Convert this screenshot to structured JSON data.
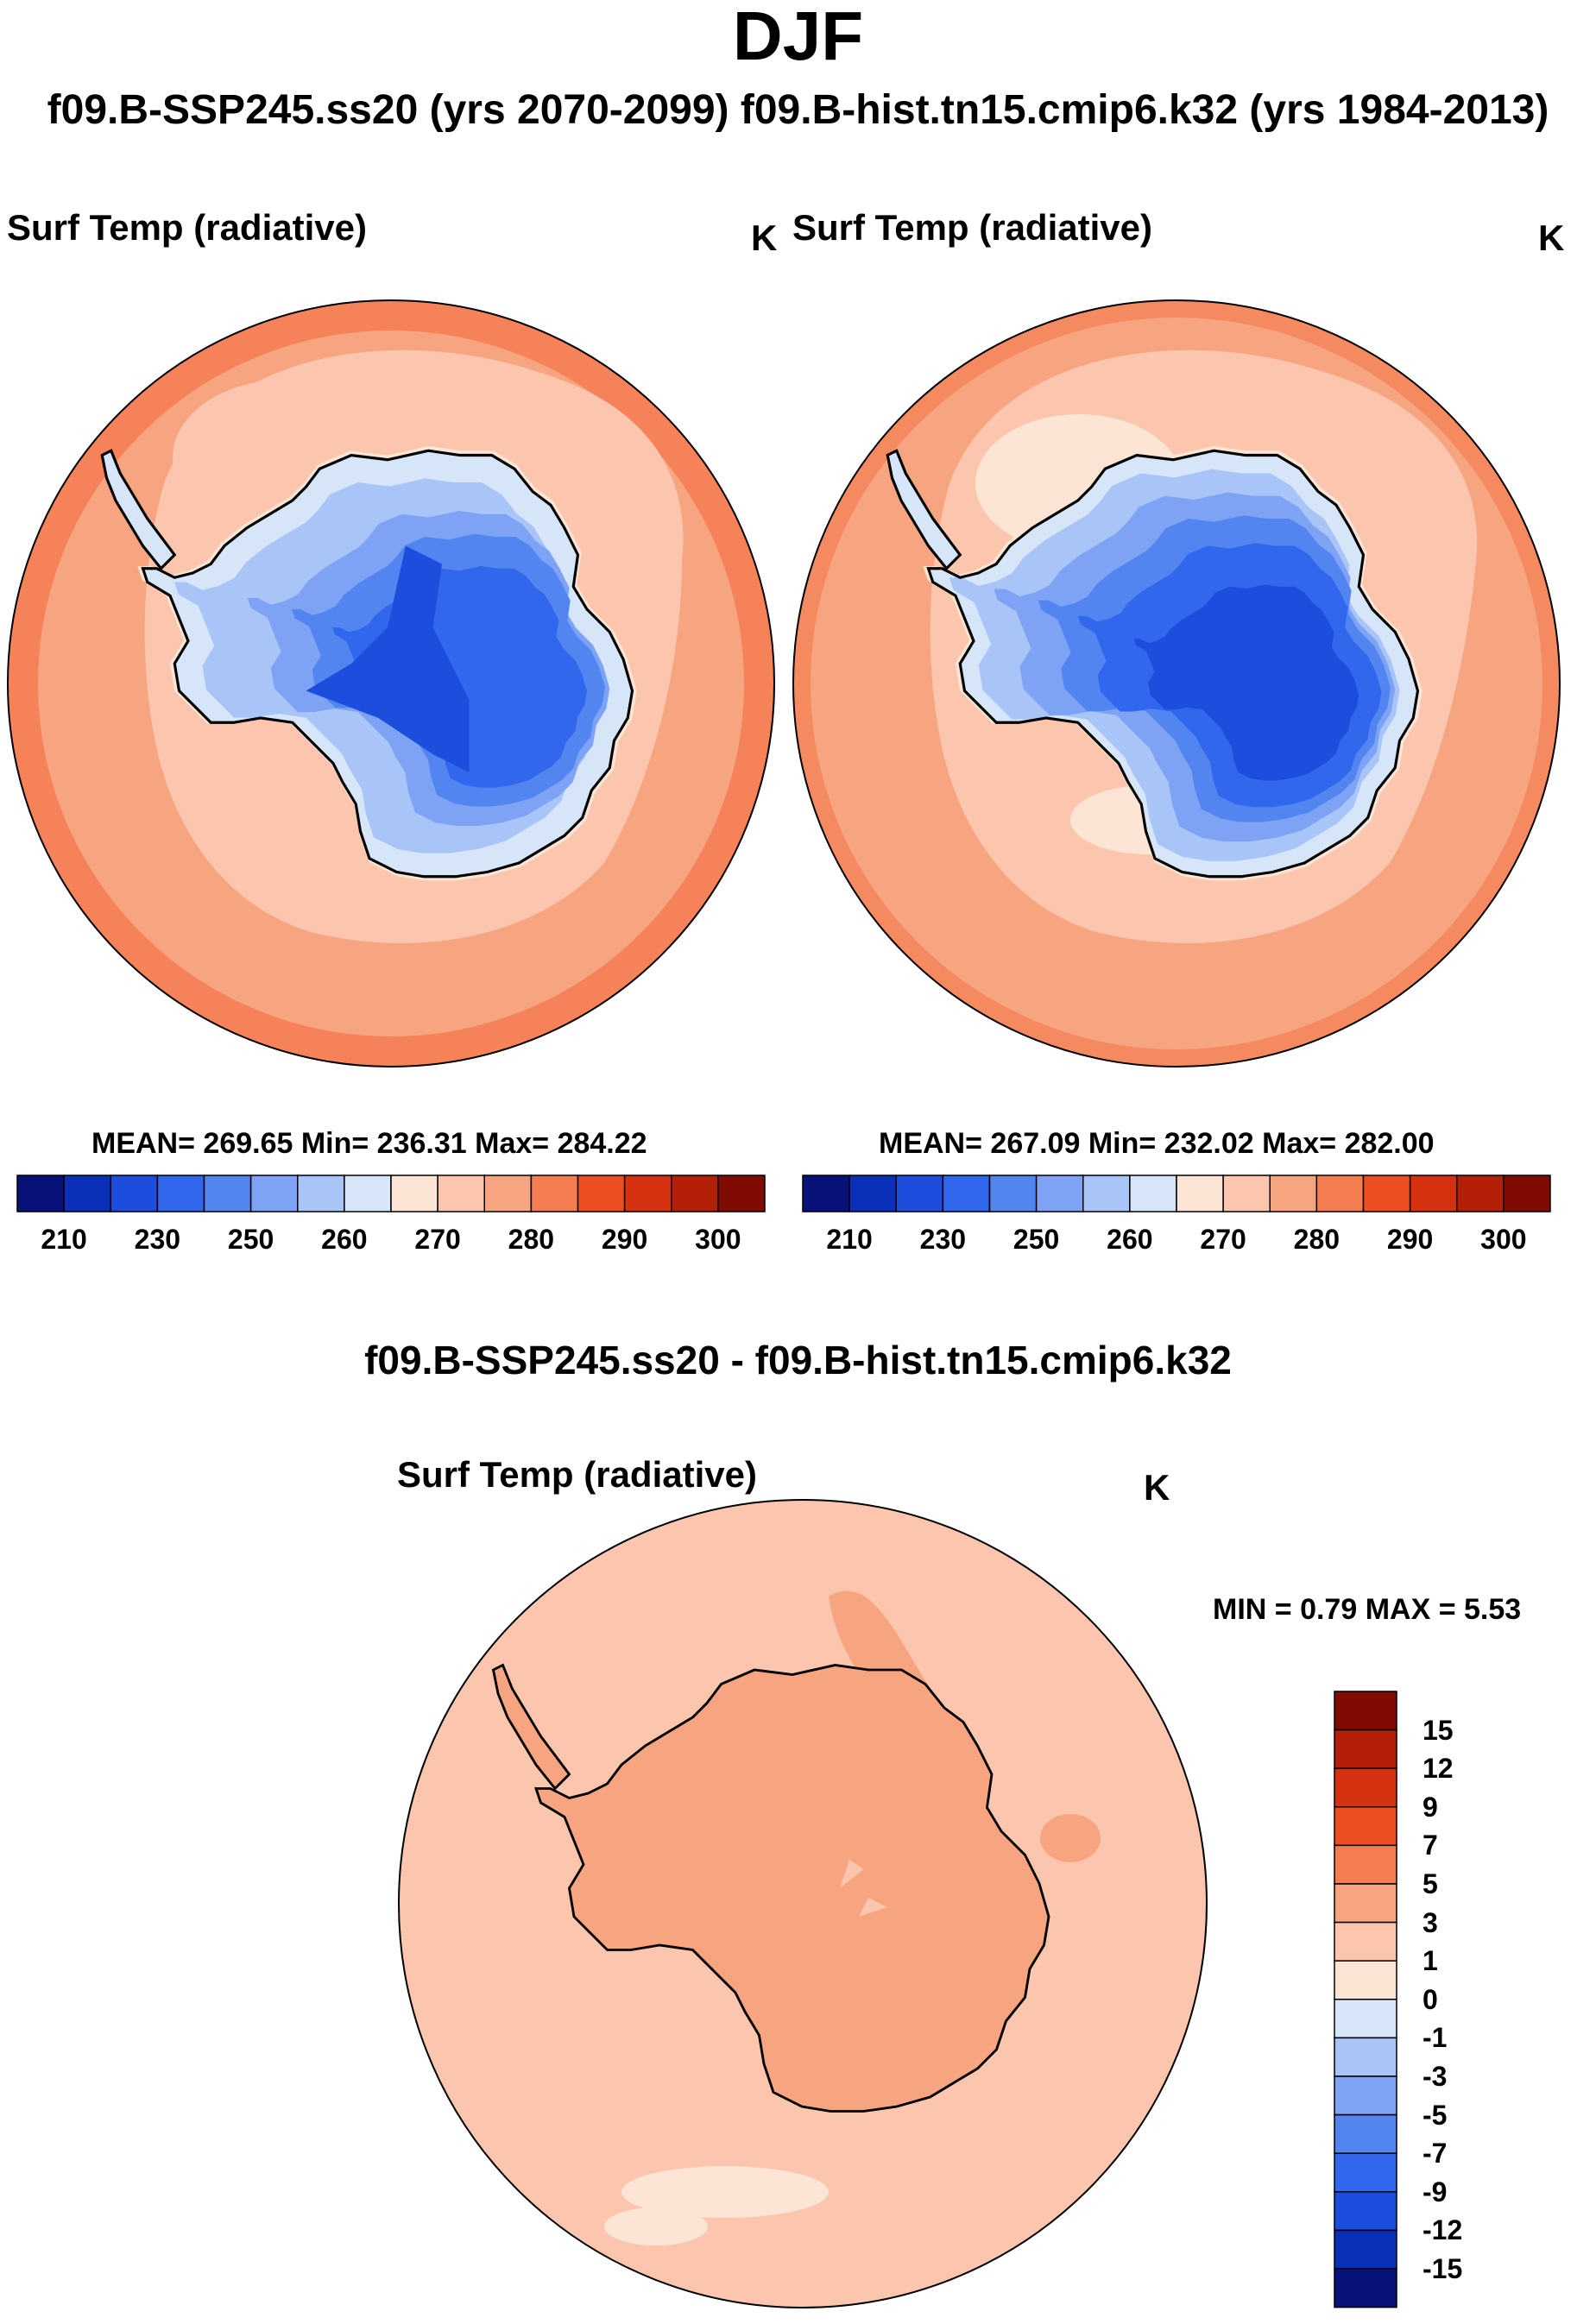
{
  "header": {
    "title": "DJF",
    "subtitle": "f09.B-SSP245.ss20 (yrs 2070-2099)  f09.B-hist.tn15.cmip6.k32 (yrs 1984-2013)"
  },
  "panels": {
    "left": {
      "title": "Surf Temp (radiative)",
      "units": "K",
      "stats": "MEAN= 269.65  Min= 236.31  Max= 284.22"
    },
    "right": {
      "title": "Surf Temp (radiative)",
      "units": "K",
      "stats": "MEAN= 267.09  Min= 232.02  Max= 282.00"
    },
    "diff": {
      "heading": "f09.B-SSP245.ss20 - f09.B-hist.tn15.cmip6.k32",
      "title": "Surf Temp (radiative)",
      "units": "K",
      "stats": "MIN =   0.79 MAX =   5.53"
    }
  },
  "colorbar_abs": {
    "colors": [
      "#08107a",
      "#0a2fb8",
      "#1c4ddc",
      "#3067ec",
      "#5285f0",
      "#7ea3f4",
      "#a9c4f6",
      "#d6e6f8",
      "#fde5d6",
      "#fbc6ad",
      "#f7a481",
      "#f47d52",
      "#ee4f22",
      "#d5300f",
      "#b41f07",
      "#800b03"
    ],
    "labels": [
      "210",
      "230",
      "250",
      "260",
      "270",
      "280",
      "290",
      "300"
    ]
  },
  "colorbar_diff": {
    "colors": [
      "#800b03",
      "#b41f07",
      "#d5300f",
      "#ee4f22",
      "#f47d52",
      "#f7a481",
      "#fbc6ad",
      "#fde5d6",
      "#d6e6f8",
      "#a9c4f6",
      "#7ea3f4",
      "#5285f0",
      "#3067ec",
      "#1c4ddc",
      "#0a2fb8",
      "#08107a"
    ],
    "labels": [
      "15",
      "12",
      "9",
      "7",
      "5",
      "3",
      "1",
      "0",
      "-1",
      "-3",
      "-5",
      "-7",
      "-9",
      "-12",
      "-15"
    ]
  }
}
